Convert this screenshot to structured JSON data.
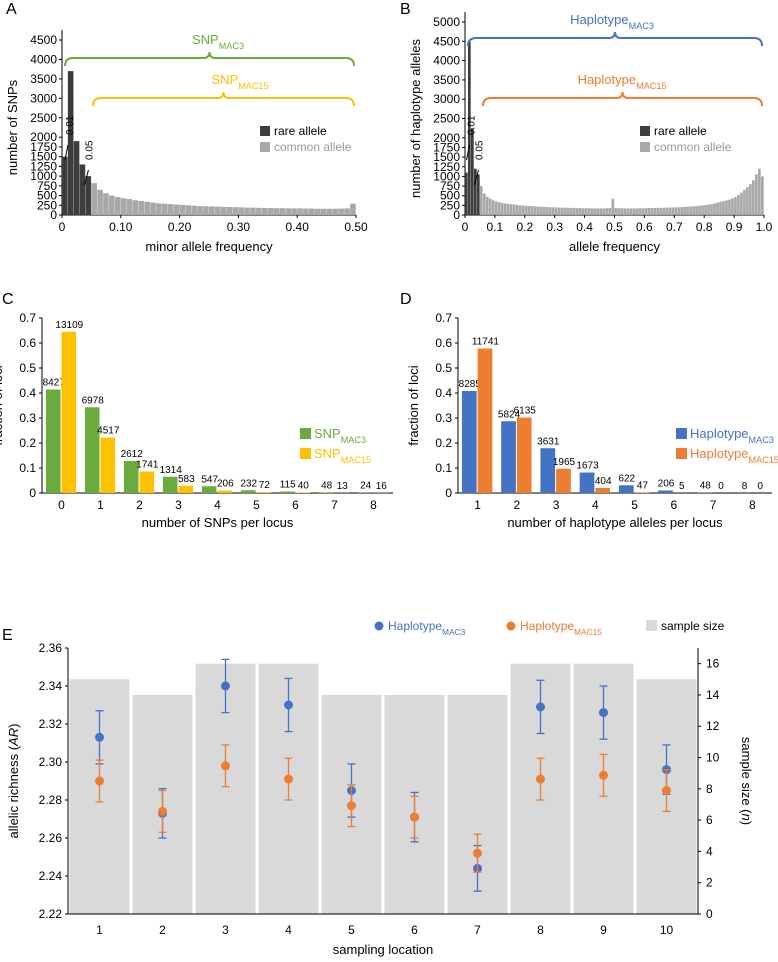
{
  "colors": {
    "rare": "#3d3d3d",
    "common": "#a8a8a8",
    "green": "#6aab3e",
    "yellow": "#fcc100",
    "blue": "#4472c4",
    "orange": "#ed7d31",
    "gray_bg": "#d9d9d9"
  },
  "chart_data": [
    {
      "panel": "A",
      "type": "bar",
      "xlabel": "minor allele frequency",
      "ylabel": "number of SNPs",
      "xlim": [
        0,
        0.5
      ],
      "ylim": [
        0,
        4500
      ],
      "xticks": [
        "0",
        "0.10",
        "0.20",
        "0.30",
        "0.40",
        "0.50"
      ],
      "yticks": [
        "0",
        "250",
        "500",
        "750",
        "1000",
        "1250",
        "1500",
        "1750",
        "2000",
        "2500",
        "3000",
        "3500",
        "4000",
        "4500"
      ],
      "bin_width": 0.01,
      "values": [
        1500,
        3700,
        1900,
        1300,
        1000,
        820,
        650,
        560,
        500,
        460,
        430,
        410,
        380,
        360,
        340,
        320,
        300,
        290,
        280,
        270,
        260,
        250,
        240,
        230,
        225,
        220,
        215,
        210,
        205,
        200,
        195,
        190,
        190,
        185,
        180,
        180,
        175,
        175,
        170,
        170,
        170,
        165,
        165,
        160,
        160,
        160,
        160,
        165,
        170,
        290
      ],
      "rare_bins": 5,
      "legend": [
        "rare allele",
        "common allele"
      ],
      "annotations": [
        {
          "text": "0.01",
          "x": 0.01
        },
        {
          "text": "0.05",
          "x": 0.05
        }
      ],
      "brackets": [
        {
          "label_main": "SNP",
          "label_sub": "MAC3",
          "from": 0.0,
          "to": 0.5,
          "color": "green"
        },
        {
          "label_main": "SNP",
          "label_sub": "MAC15",
          "from": 0.05,
          "to": 0.5,
          "color": "yellow"
        }
      ]
    },
    {
      "panel": "B",
      "type": "bar",
      "xlabel": "allele frequency",
      "ylabel": "number of haplotype alleles",
      "xlim": [
        0,
        1
      ],
      "ylim": [
        0,
        5000
      ],
      "xticks": [
        "0",
        "0.1",
        "0.2",
        "0.3",
        "0.4",
        "0.5",
        "0.6",
        "0.7",
        "0.8",
        "0.9",
        "1.0"
      ],
      "yticks": [
        "0",
        "250",
        "500",
        "750",
        "1000",
        "1250",
        "1500",
        "1750",
        "2000",
        "2500",
        "3000",
        "3500",
        "4000",
        "4500",
        "5000"
      ],
      "bin_width": 0.01,
      "values": [
        1100,
        4500,
        2250,
        1200,
        1050,
        750,
        560,
        470,
        420,
        380,
        350,
        330,
        310,
        300,
        290,
        280,
        270,
        260,
        250,
        245,
        240,
        235,
        230,
        225,
        220,
        215,
        210,
        205,
        200,
        200,
        195,
        195,
        190,
        190,
        185,
        185,
        180,
        180,
        180,
        175,
        175,
        175,
        170,
        170,
        170,
        170,
        170,
        175,
        180,
        420,
        180,
        175,
        175,
        170,
        170,
        170,
        170,
        170,
        175,
        175,
        175,
        180,
        180,
        180,
        185,
        185,
        190,
        190,
        195,
        195,
        200,
        200,
        205,
        210,
        215,
        220,
        225,
        230,
        240,
        250,
        260,
        270,
        280,
        300,
        320,
        340,
        360,
        380,
        400,
        430,
        470,
        520,
        580,
        650,
        720,
        800,
        900,
        1050,
        1200,
        1000
      ],
      "rare_bins": 5,
      "legend": [
        "rare allele",
        "common allele"
      ],
      "annotations": [
        {
          "text": "0.01",
          "x": 0.01
        },
        {
          "text": "0.05",
          "x": 0.05
        }
      ],
      "brackets": [
        {
          "label_main": "Haplotype",
          "label_sub": "MAC3",
          "from": 0.0,
          "to": 1.0,
          "color": "blue"
        },
        {
          "label_main": "Haplotype",
          "label_sub": "MAC15",
          "from": 0.05,
          "to": 1.0,
          "color": "orange"
        }
      ]
    },
    {
      "panel": "C",
      "type": "bar",
      "xlabel": "number of SNPs per locus",
      "ylabel": "fraction of loci",
      "ylim": [
        0,
        0.7
      ],
      "yticks": [
        "0",
        "0.1",
        "0.2",
        "0.3",
        "0.4",
        "0.5",
        "0.6",
        "0.7"
      ],
      "categories": [
        "0",
        "1",
        "2",
        "3",
        "4",
        "5",
        "6",
        "7",
        "8"
      ],
      "series": [
        {
          "name": "SNP",
          "sub": "MAC3",
          "color": "green",
          "values": [
            0.414,
            0.343,
            0.128,
            0.065,
            0.027,
            0.011,
            0.006,
            0.0024,
            0.0012
          ],
          "labels": [
            "8427",
            "6978",
            "2612",
            "1314",
            "547",
            "232",
            "115",
            "48",
            "24"
          ]
        },
        {
          "name": "SNP",
          "sub": "MAC15",
          "color": "yellow",
          "values": [
            0.645,
            0.222,
            0.086,
            0.029,
            0.01,
            0.0035,
            0.002,
            0.0006,
            0.0008
          ],
          "labels": [
            "13109",
            "4517",
            "1741",
            "583",
            "206",
            "72",
            "40",
            "13",
            "16"
          ]
        }
      ]
    },
    {
      "panel": "D",
      "type": "bar",
      "xlabel": "number of haplotype alleles per locus",
      "ylabel": "fraction of loci",
      "ylim": [
        0,
        0.7
      ],
      "yticks": [
        "0",
        "0.1",
        "0.2",
        "0.3",
        "0.4",
        "0.5",
        "0.6",
        "0.7"
      ],
      "categories": [
        "1",
        "2",
        "3",
        "4",
        "5",
        "6",
        "7",
        "8"
      ],
      "series": [
        {
          "name": "Haplotype",
          "sub": "MAC3",
          "color": "blue",
          "values": [
            0.408,
            0.287,
            0.179,
            0.082,
            0.031,
            0.01,
            0.0024,
            0.0004
          ],
          "labels": [
            "8285",
            "5824",
            "3631",
            "1673",
            "622",
            "206",
            "48",
            "8"
          ]
        },
        {
          "name": "Haplotype",
          "sub": "MAC15",
          "color": "orange",
          "values": [
            0.578,
            0.302,
            0.097,
            0.02,
            0.0023,
            0.0002,
            0.0,
            0.0
          ],
          "labels": [
            "11741",
            "6135",
            "1965",
            "404",
            "47",
            "5",
            "0",
            "0"
          ]
        }
      ]
    },
    {
      "panel": "E",
      "type": "scatter",
      "xlabel": "sampling location",
      "ylabel_main": "allelic richness (",
      "ylabel_italic": "AR",
      "ylabel_end": ")",
      "y2label_main": "sample size (",
      "y2label_italic": "n",
      "y2label_end": ")",
      "categories": [
        "1",
        "2",
        "3",
        "4",
        "5",
        "6",
        "7",
        "8",
        "9",
        "10"
      ],
      "ylim": [
        2.22,
        2.36
      ],
      "yticks": [
        "2.22",
        "2.24",
        "2.26",
        "2.28",
        "2.30",
        "2.32",
        "2.34",
        "2.36"
      ],
      "y2lim": [
        0,
        17
      ],
      "y2ticks": [
        "0",
        "2",
        "4",
        "6",
        "8",
        "10",
        "12",
        "14",
        "16"
      ],
      "sample_size": [
        15,
        14,
        16,
        16,
        14,
        14,
        14,
        16,
        16,
        15
      ],
      "sample_size_label": "sample size",
      "series": [
        {
          "name": "Haplotype",
          "sub": "MAC3",
          "color": "blue",
          "values": [
            2.313,
            2.273,
            2.34,
            2.33,
            2.285,
            2.271,
            2.244,
            2.329,
            2.326,
            2.296
          ],
          "err": [
            0.014,
            0.013,
            0.014,
            0.014,
            0.014,
            0.013,
            0.012,
            0.014,
            0.014,
            0.013
          ]
        },
        {
          "name": "Haplotype",
          "sub": "MAC15",
          "color": "orange",
          "values": [
            2.29,
            2.274,
            2.298,
            2.291,
            2.277,
            2.271,
            2.252,
            2.291,
            2.293,
            2.285
          ],
          "err": [
            0.011,
            0.011,
            0.011,
            0.011,
            0.011,
            0.011,
            0.01,
            0.011,
            0.011,
            0.011
          ]
        }
      ]
    }
  ],
  "panel_letters": [
    "A",
    "B",
    "C",
    "D",
    "E"
  ]
}
